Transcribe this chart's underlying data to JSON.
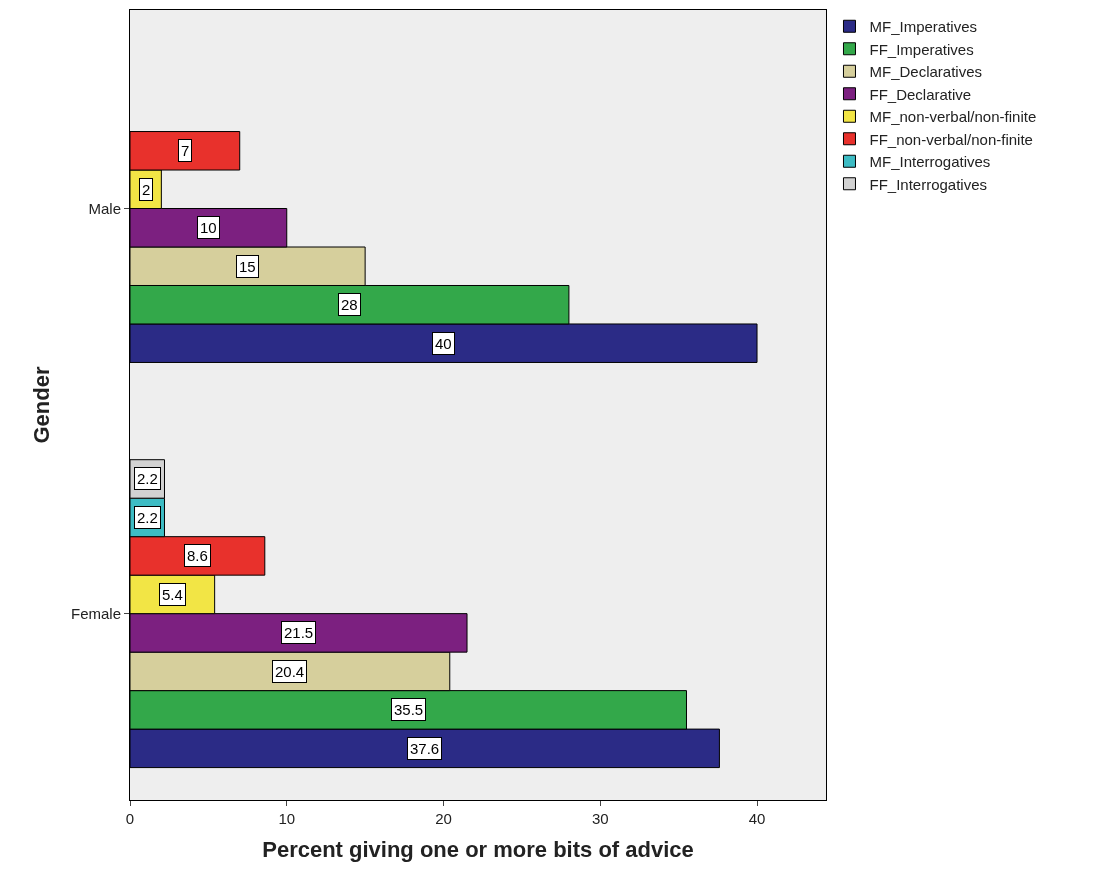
{
  "chart_data": {
    "type": "bar",
    "orientation": "horizontal",
    "xlabel": "Percent giving one or more bits of advice",
    "ylabel": "Gender",
    "categories": [
      "Male",
      "Female"
    ],
    "series": [
      {
        "name": "MF_Imperatives",
        "color": "#2b2b86",
        "values": [
          40,
          37.6
        ],
        "value_labels": [
          "40",
          "37.6"
        ]
      },
      {
        "name": "FF_Imperatives",
        "color": "#33a84a",
        "values": [
          28,
          35.5
        ],
        "value_labels": [
          "28",
          "35.5"
        ]
      },
      {
        "name": "MF_Declaratives",
        "color": "#d6cf9c",
        "values": [
          15,
          20.4
        ],
        "value_labels": [
          "15",
          "20.4"
        ]
      },
      {
        "name": "FF_Declarative",
        "color": "#7c2080",
        "values": [
          10,
          21.5
        ],
        "value_labels": [
          "10",
          "21.5"
        ]
      },
      {
        "name": "MF_non-verbal/non-finite",
        "color": "#f2e545",
        "values": [
          2,
          5.4
        ],
        "value_labels": [
          "2",
          "5.4"
        ]
      },
      {
        "name": "FF_non-verbal/non-finite",
        "color": "#e8312c",
        "values": [
          7,
          8.6
        ],
        "value_labels": [
          "7",
          "8.6"
        ]
      },
      {
        "name": "MF_Interrogatives",
        "color": "#3dbcc4",
        "values": [
          null,
          2.2
        ],
        "value_labels": [
          null,
          "2.2"
        ]
      },
      {
        "name": "FF_Interrogatives",
        "color": "#d2d2d2",
        "values": [
          null,
          2.2
        ],
        "value_labels": [
          null,
          "2.2"
        ]
      }
    ],
    "xlim": [
      0,
      44.4
    ],
    "xticks": [
      0,
      10,
      20,
      30,
      40
    ],
    "grid": false,
    "legend": "top right"
  }
}
